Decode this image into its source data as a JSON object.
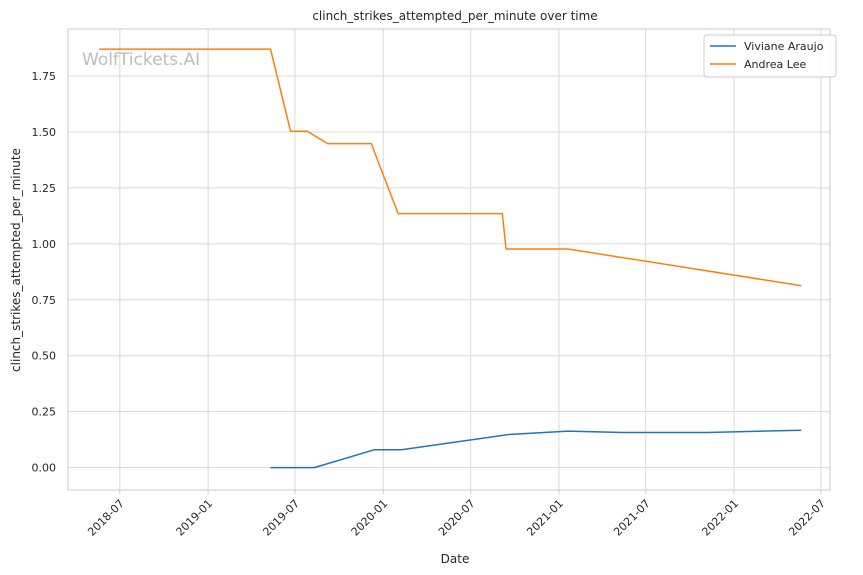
{
  "chart_data": {
    "type": "line",
    "title": "clinch_strikes_attempted_per_minute over time",
    "xlabel": "Date",
    "ylabel": "clinch_strikes_attempted_per_minute",
    "watermark": "WolfTickets.AI",
    "xlim": [
      "2018-03-15",
      "2022-07-20"
    ],
    "ylim": [
      -0.1,
      1.96
    ],
    "x_ticks": [
      "2018-07",
      "2019-01",
      "2019-07",
      "2020-01",
      "2020-07",
      "2021-01",
      "2021-07",
      "2022-01",
      "2022-07"
    ],
    "y_ticks": [
      "0.00",
      "0.25",
      "0.50",
      "0.75",
      "1.00",
      "1.25",
      "1.50",
      "1.75"
    ],
    "grid": true,
    "legend": "top-right",
    "series": [
      {
        "name": "Viviane Araujo",
        "color": "#1f77b4",
        "points": [
          [
            "2019-05-11",
            0.0
          ],
          [
            "2019-08-10",
            0.0
          ],
          [
            "2019-12-14",
            0.08
          ],
          [
            "2020-02-08",
            0.08
          ],
          [
            "2020-09-19",
            0.148
          ],
          [
            "2021-01-20",
            0.163
          ],
          [
            "2021-05-15",
            0.157
          ],
          [
            "2021-11-06",
            0.157
          ],
          [
            "2022-05-21",
            0.167
          ]
        ]
      },
      {
        "name": "Andrea Lee",
        "color": "#ff7f0e",
        "points": [
          [
            "2018-05-19",
            1.87
          ],
          [
            "2019-05-11",
            1.87
          ],
          [
            "2019-06-22",
            1.503
          ],
          [
            "2019-07-27",
            1.503
          ],
          [
            "2019-09-07",
            1.448
          ],
          [
            "2019-12-07",
            1.448
          ],
          [
            "2020-02-01",
            1.135
          ],
          [
            "2020-09-05",
            1.135
          ],
          [
            "2020-09-13",
            0.977
          ],
          [
            "2021-01-20",
            0.977
          ],
          [
            "2022-05-21",
            0.813
          ]
        ]
      }
    ]
  }
}
